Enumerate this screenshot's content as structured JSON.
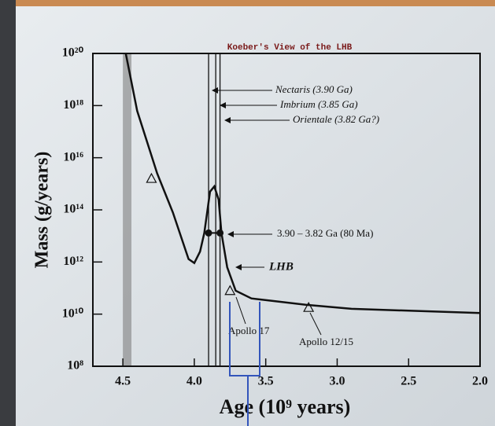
{
  "chart_data": {
    "type": "line",
    "title": "Koeber's View of the LHB",
    "x_label": "Age (10⁹ years)",
    "y_label": "Mass (g/years)",
    "log_y": true,
    "color": "#111111",
    "x": [
      4.48,
      4.4,
      4.26,
      4.15,
      4.04,
      4.0,
      3.96,
      3.93,
      3.89,
      3.86,
      3.83,
      3.81,
      3.77,
      3.71,
      3.6,
      3.22,
      2.9,
      2.0
    ],
    "values": [
      1e+20,
      6.3e+17,
      2500000000000000.0,
      79000000000000.0,
      1300000000000.0,
      910000000000.0,
      2500000000000.0,
      13000000000000.0,
      500000000000000.0,
      790000000000000.0,
      250000000000000.0,
      13000000000000.0,
      630000000000.0,
      79000000000.0,
      40000000000.0,
      23000000000.0,
      16000000000.0,
      11000000000.0
    ],
    "samples": {
      "x": [
        4.3,
        3.75,
        3.2
      ],
      "values": [
        1600000000000000.0,
        80000000000.0,
        18000000000.0
      ]
    },
    "bracket": {
      "x": [
        3.9,
        3.82
      ],
      "values": [
        13000000000000.0,
        13000000000000.0
      ]
    },
    "event_lines": [
      3.9,
      3.85,
      3.82
    ],
    "shaded_band": [
      4.5,
      4.44
    ],
    "xlim": [
      4.71,
      2.0
    ],
    "ylim": [
      100000000.0,
      1e+20
    ],
    "xticks": [
      4.5,
      {
        "value": 4,
        "label": "4.0"
      },
      3.5,
      {
        "value": 3,
        "label": "3.0"
      },
      2.5,
      {
        "value": 2,
        "label": "2.0"
      }
    ],
    "yticks": [
      {
        "value": 100000000.0,
        "label": "10⁸"
      },
      {
        "value": 10000000000.0,
        "label": "10¹⁰"
      },
      {
        "value": 1000000000000.0,
        "label": "10¹²"
      },
      {
        "value": 100000000000000.0,
        "label": "10¹⁴"
      },
      {
        "value": 1e+16,
        "label": "10¹⁶"
      },
      {
        "value": 1e+18,
        "label": "10¹⁸"
      },
      {
        "value": 1e+20,
        "label": "10²⁰"
      }
    ],
    "annotations": {
      "nectaris": "Nectaris (3.90 Ga)",
      "imbrium": "Imbrium (3.85 Ga)",
      "orientale": "Orientale (3.82 Ga?)",
      "range": "3.90 – 3.82 Ga (80 Ma)",
      "lhb": "LHB",
      "apollo17": "Apollo 17",
      "apollo1215": "Apollo 12/15"
    }
  }
}
